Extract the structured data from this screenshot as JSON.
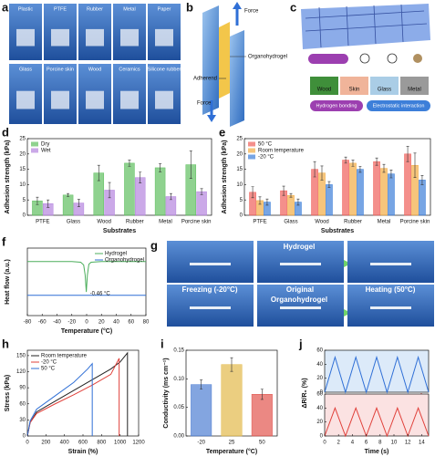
{
  "figure": {
    "a": {
      "label": "a",
      "items": [
        "Plastic",
        "PTFE",
        "Rubber",
        "Metal",
        "Paper",
        "Glass",
        "Porcine skin",
        "Wood",
        "Ceramics",
        "Silicone rubber"
      ]
    },
    "b": {
      "label": "b",
      "force_top": "Force",
      "material": "Organohydrogel",
      "adherend": "Adherend",
      "force_bottom": "Force"
    },
    "c": {
      "label": "c",
      "substrates": [
        "Wood",
        "Skin",
        "Glass",
        "Metal"
      ],
      "interactions": [
        "Hydrogen bonding",
        "Electrostatic interaction"
      ]
    },
    "g": {
      "label": "g",
      "top_title": "Hydrogel",
      "conditions": [
        "Freezing (-20°C)",
        "Original",
        "Heating (50°C)"
      ],
      "bottom_title": "Organohydrogel"
    }
  },
  "chart_data": [
    {
      "label": "d",
      "type": "bar",
      "categories": [
        "PTFE",
        "Glass",
        "Wood",
        "Rubber",
        "Metal",
        "Porcine skin"
      ],
      "series": [
        {
          "name": "Dry",
          "color": "#5fbf5f",
          "values": [
            4.7,
            6.6,
            13.8,
            17,
            15.5,
            16.5
          ],
          "errors": [
            1.2,
            0.5,
            2.5,
            1,
            1.3,
            4.5
          ]
        },
        {
          "name": "Wet",
          "color": "#b585de",
          "values": [
            3.8,
            4,
            8.2,
            12.3,
            6.1,
            7.7
          ],
          "errors": [
            1.2,
            1.2,
            2.5,
            1.8,
            1,
            1
          ]
        }
      ],
      "ylim": [
        0,
        25
      ],
      "yticks": [
        0,
        5,
        10,
        15,
        20,
        25
      ],
      "ylabel": "Adhesion strength (kPa)",
      "xlabel": "Substrates",
      "legend": "upper-left"
    },
    {
      "label": "e",
      "type": "bar",
      "categories": [
        "PTFE",
        "Glass",
        "Wood",
        "Rubber",
        "Metal",
        "Porcine skin"
      ],
      "series": [
        {
          "name": "50 °C",
          "color": "#f0605a",
          "values": [
            7.5,
            8,
            15,
            18,
            17.5,
            20
          ],
          "errors": [
            1.8,
            1.5,
            2.5,
            1,
            1.2,
            2.5
          ]
        },
        {
          "name": "Room temperature",
          "color": "#f2ad45",
          "values": [
            4.8,
            6.5,
            13.8,
            17,
            15.3,
            16.3
          ],
          "errors": [
            1.2,
            0.6,
            2.3,
            1,
            1.3,
            4
          ]
        },
        {
          "name": "-20 °C",
          "color": "#3d7fd9",
          "values": [
            4.3,
            4.3,
            10,
            15,
            13.5,
            11.5
          ],
          "errors": [
            1,
            1,
            1,
            1,
            1.3,
            1.5
          ]
        }
      ],
      "ylim": [
        0,
        25
      ],
      "yticks": [
        0,
        5,
        10,
        15,
        20,
        25
      ],
      "ylabel": "Adhesion strength (kPa)",
      "xlabel": "Substrates",
      "legend": "upper-left"
    },
    {
      "label": "f",
      "type": "line",
      "series": [
        {
          "name": "Hydrogel",
          "color": "#4cae5c",
          "x": [
            -80,
            -20,
            -8,
            -4,
            -2,
            -0.46,
            1,
            3,
            6,
            20,
            80
          ],
          "values": [
            0.8,
            0.8,
            0.79,
            0.75,
            0.6,
            0.35,
            0.6,
            0.76,
            0.79,
            0.8,
            0.8
          ]
        },
        {
          "name": "Organohydrogel",
          "color": "#2f6fd6",
          "x": [
            -80,
            0,
            80
          ],
          "values": [
            0.3,
            0.3,
            0.3
          ]
        }
      ],
      "xlim": [
        -80,
        80
      ],
      "xticks": [
        -80,
        -60,
        -40,
        -20,
        0,
        20,
        40,
        60,
        80
      ],
      "ylim": [
        0,
        1
      ],
      "ylabel": "Heat flow (a.u.)",
      "xlabel": "Temperature (°C)",
      "annotation": "-0.46 °C",
      "legend": "upper-right"
    },
    {
      "label": "h",
      "type": "line",
      "series": [
        {
          "name": "Room temperature",
          "color": "#222222",
          "x": [
            0,
            30,
            100,
            300,
            500,
            700,
            900,
            1000,
            1080,
            1080
          ],
          "values": [
            0,
            25,
            45,
            65,
            85,
            105,
            125,
            138,
            155,
            0
          ]
        },
        {
          "name": "-20 °C",
          "color": "#e0403a",
          "x": [
            0,
            30,
            100,
            300,
            500,
            700,
            900,
            990,
            990
          ],
          "values": [
            0,
            25,
            42,
            60,
            77,
            95,
            115,
            145,
            0
          ]
        },
        {
          "name": "50 °C",
          "color": "#2f6fd6",
          "x": [
            0,
            30,
            100,
            300,
            500,
            650,
            700,
            700
          ],
          "values": [
            0,
            28,
            50,
            75,
            100,
            125,
            135,
            0
          ]
        }
      ],
      "xlim": [
        0,
        1200
      ],
      "xticks": [
        0,
        200,
        400,
        600,
        800,
        1000,
        1200
      ],
      "ylim": [
        0,
        160
      ],
      "yticks": [
        0,
        30,
        60,
        90,
        120,
        150
      ],
      "ylabel": "Stress (kPa)",
      "xlabel": "Strain (%)",
      "legend": "upper-left"
    },
    {
      "label": "i",
      "type": "bar",
      "categories": [
        "-20",
        "25",
        "50"
      ],
      "values": [
        0.09,
        0.125,
        0.073
      ],
      "errors": [
        0.008,
        0.012,
        0.009
      ],
      "colors": [
        "#4f7fd3",
        "#e3b94a",
        "#e2564f"
      ],
      "ylim": [
        0,
        0.15
      ],
      "yticks": [
        {
          "value": 0,
          "label": "0.00"
        },
        {
          "value": 0.05,
          "label": "0.05"
        },
        {
          "value": 0.1,
          "label": "0.10"
        },
        {
          "value": 0.15,
          "label": "0.15"
        }
      ],
      "ylabel": "Conductivity (ms cm⁻¹)",
      "xlabel": "Temperature (°C)"
    },
    {
      "label": "j",
      "type": "line",
      "xlim": [
        0,
        15
      ],
      "xticks": [
        0,
        2,
        4,
        6,
        8,
        10,
        12,
        14
      ],
      "ylabel": "ΔR/R₀ (%)",
      "xlabel": "Time (s)",
      "panels": [
        {
          "ylim": [
            0,
            60
          ],
          "yticks": [
            0,
            20,
            40,
            60
          ],
          "background": "#dceaf9",
          "series": [
            {
              "color": "#2f6fd6",
              "x": [
                0,
                1.5,
                3,
                4.5,
                6,
                7.5,
                9,
                10.5,
                12,
                13.5,
                15
              ],
              "values": [
                0,
                50,
                0,
                50,
                0,
                50,
                0,
                50,
                0,
                50,
                0
              ]
            }
          ]
        },
        {
          "ylim": [
            0,
            60
          ],
          "yticks": [
            0,
            20,
            40,
            60
          ],
          "background": "#fbe2e2",
          "series": [
            {
              "color": "#e0403a",
              "x": [
                0,
                1.5,
                3,
                4.5,
                6,
                7.5,
                9,
                10.5,
                12,
                13.5,
                15
              ],
              "values": [
                0,
                40,
                0,
                40,
                0,
                40,
                0,
                40,
                0,
                40,
                0
              ]
            }
          ]
        }
      ]
    }
  ]
}
